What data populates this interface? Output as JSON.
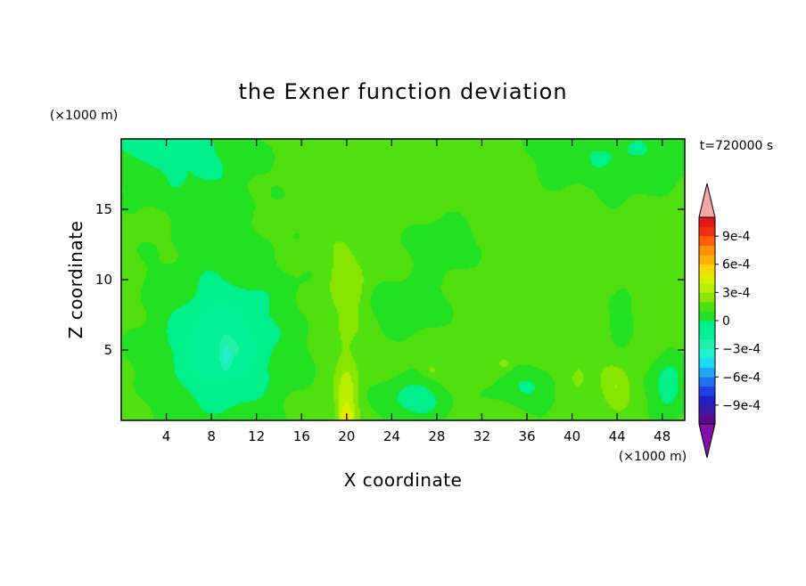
{
  "chart_data": {
    "type": "heatmap",
    "title": "the Exner function deviation",
    "xlabel": "X coordinate",
    "ylabel": "Z coordinate",
    "x_unit": "(×1000 m)",
    "y_unit": "(×1000 m)",
    "time_label": "t=720000 s",
    "xlim": [
      0,
      50
    ],
    "ylim": [
      0,
      20
    ],
    "x_ticks": [
      4,
      8,
      12,
      16,
      20,
      24,
      28,
      32,
      36,
      40,
      44,
      48
    ],
    "y_ticks": [
      5,
      10,
      15
    ],
    "colorbar": {
      "levels": [
        -0.0011,
        -0.001,
        -0.0009,
        -0.0008,
        -0.0007,
        -0.0006,
        -0.0005,
        -0.0004,
        -0.0003,
        -0.0002,
        -0.0001,
        0,
        0.0001,
        0.0002,
        0.0003,
        0.0004,
        0.0005,
        0.0006,
        0.0007,
        0.0008,
        0.0009,
        0.001,
        0.0011
      ],
      "label_values": [
        0.0009,
        0.0006,
        0.0003,
        0,
        -0.0003,
        -0.0006,
        -0.0009
      ],
      "labels": [
        "9e-4",
        "6e-4",
        "3e-4",
        "0",
        "−3e-4",
        "−6e-4",
        "−9e-4"
      ],
      "colors": [
        "#5b0a8c",
        "#3a1aa8",
        "#2020c8",
        "#1f3fe6",
        "#2070f0",
        "#1ea8f2",
        "#18dcf6",
        "#20f0d0",
        "#20f0a8",
        "#00f096",
        "#00f08c",
        "#22e022",
        "#50e010",
        "#88e600",
        "#b8f000",
        "#d8f000",
        "#f8d800",
        "#ffb000",
        "#ff9000",
        "#ff6000",
        "#f03010",
        "#e01818"
      ],
      "under_color": "#8010a8",
      "over_color": "#f4a6a6"
    },
    "field_background": 0.00015,
    "field_features": [
      {
        "cx": 1.5,
        "cy": 20,
        "sx": 6,
        "sy": 1.5,
        "amp": -0.00016
      },
      {
        "cx": 6,
        "cy": 18,
        "sx": 6,
        "sy": 3,
        "amp": -0.00015
      },
      {
        "cx": 44,
        "cy": 19,
        "sx": 7,
        "sy": 3,
        "amp": -0.00015
      },
      {
        "cx": 25,
        "cy": 8,
        "sx": 4,
        "sy": 2,
        "amp": -0.00012
      },
      {
        "cx": 9,
        "cy": 6,
        "sx": 7,
        "sy": 7,
        "amp": -0.00018
      },
      {
        "cx": 9,
        "cy": 5,
        "sx": 3.8,
        "sy": 3.6,
        "amp": -0.00018
      },
      {
        "cx": 9.3,
        "cy": 4.5,
        "sx": 0.35,
        "sy": 0.9,
        "amp": -0.0002
      },
      {
        "cx": 28.5,
        "cy": 12.5,
        "sx": 3.5,
        "sy": 2.2,
        "amp": -0.0001
      },
      {
        "cx": 26,
        "cy": 1.5,
        "sx": 3,
        "sy": 1.5,
        "amp": -0.00022
      },
      {
        "cx": 36,
        "cy": 2.2,
        "sx": 3,
        "sy": 1.5,
        "amp": -0.00015
      },
      {
        "cx": 48.5,
        "cy": 2.4,
        "sx": 1.6,
        "sy": 2.2,
        "amp": -0.00022
      },
      {
        "cx": 44.5,
        "cy": 7.5,
        "sx": 1.1,
        "sy": 2,
        "amp": -0.00013
      },
      {
        "cx": 20,
        "cy": 9,
        "sx": 1.8,
        "sy": 3.4,
        "amp": 0.00015
      },
      {
        "cx": 20,
        "cy": 1.5,
        "sx": 1,
        "sy": 3,
        "amp": 0.00023
      },
      {
        "cx": 20,
        "cy": 0.2,
        "sx": 0.6,
        "sy": 0.8,
        "amp": 0.00018
      },
      {
        "cx": 44,
        "cy": 2.4,
        "sx": 1.3,
        "sy": 1.3,
        "amp": 0.00015
      },
      {
        "cx": 40.5,
        "cy": 3,
        "sx": 0.7,
        "sy": 1,
        "amp": 0.0001
      },
      {
        "cx": 34,
        "cy": 4,
        "sx": 0.5,
        "sy": 0.4,
        "amp": 0.0001
      },
      {
        "cx": 27.5,
        "cy": 3.5,
        "sx": 0.8,
        "sy": 0.5,
        "amp": 9e-05
      }
    ]
  }
}
